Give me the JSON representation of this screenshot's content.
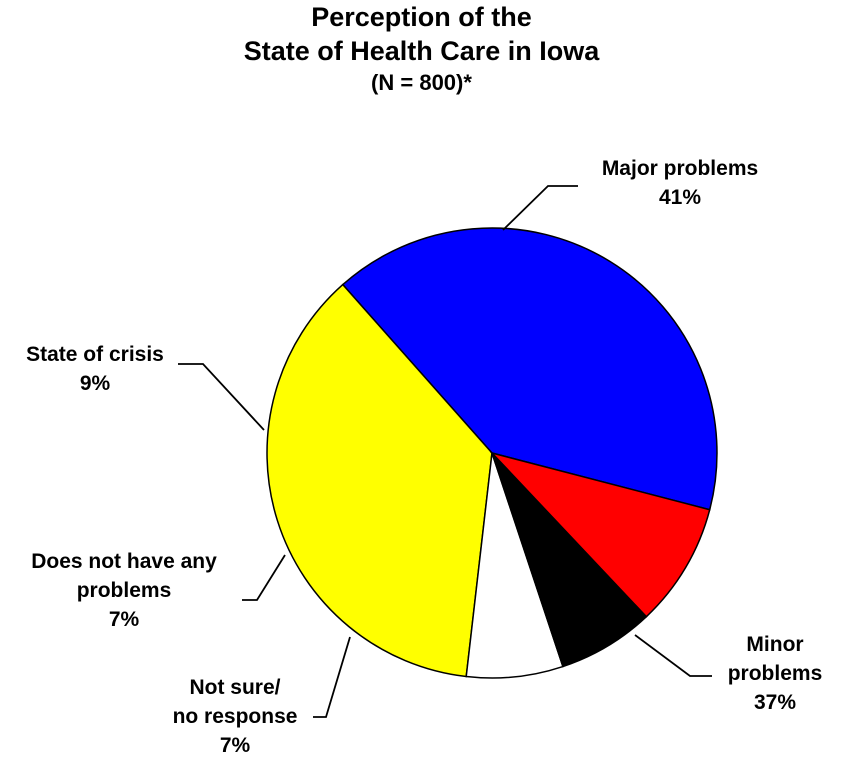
{
  "chart_data": {
    "type": "pie",
    "title_lines": [
      "Perception of the",
      "State of Health Care in Iowa"
    ],
    "subtitle": "(N = 800)*",
    "slices": [
      {
        "label_lines": [
          "Major problems"
        ],
        "value": 41,
        "value_text": "41%",
        "color": "#0000ff"
      },
      {
        "label_lines": [
          "Minor",
          "problems"
        ],
        "value": 37,
        "value_text": "37%",
        "color": "#ffff00"
      },
      {
        "label_lines": [
          "Not sure/",
          "no response"
        ],
        "value": 7,
        "value_text": "7%",
        "color": "#ffffff"
      },
      {
        "label_lines": [
          "Does not have any",
          "problems"
        ],
        "value": 7,
        "value_text": "7%",
        "color": "#000000"
      },
      {
        "label_lines": [
          "State of crisis"
        ],
        "value": 9,
        "value_text": "9%",
        "color": "#ff0000"
      }
    ]
  }
}
